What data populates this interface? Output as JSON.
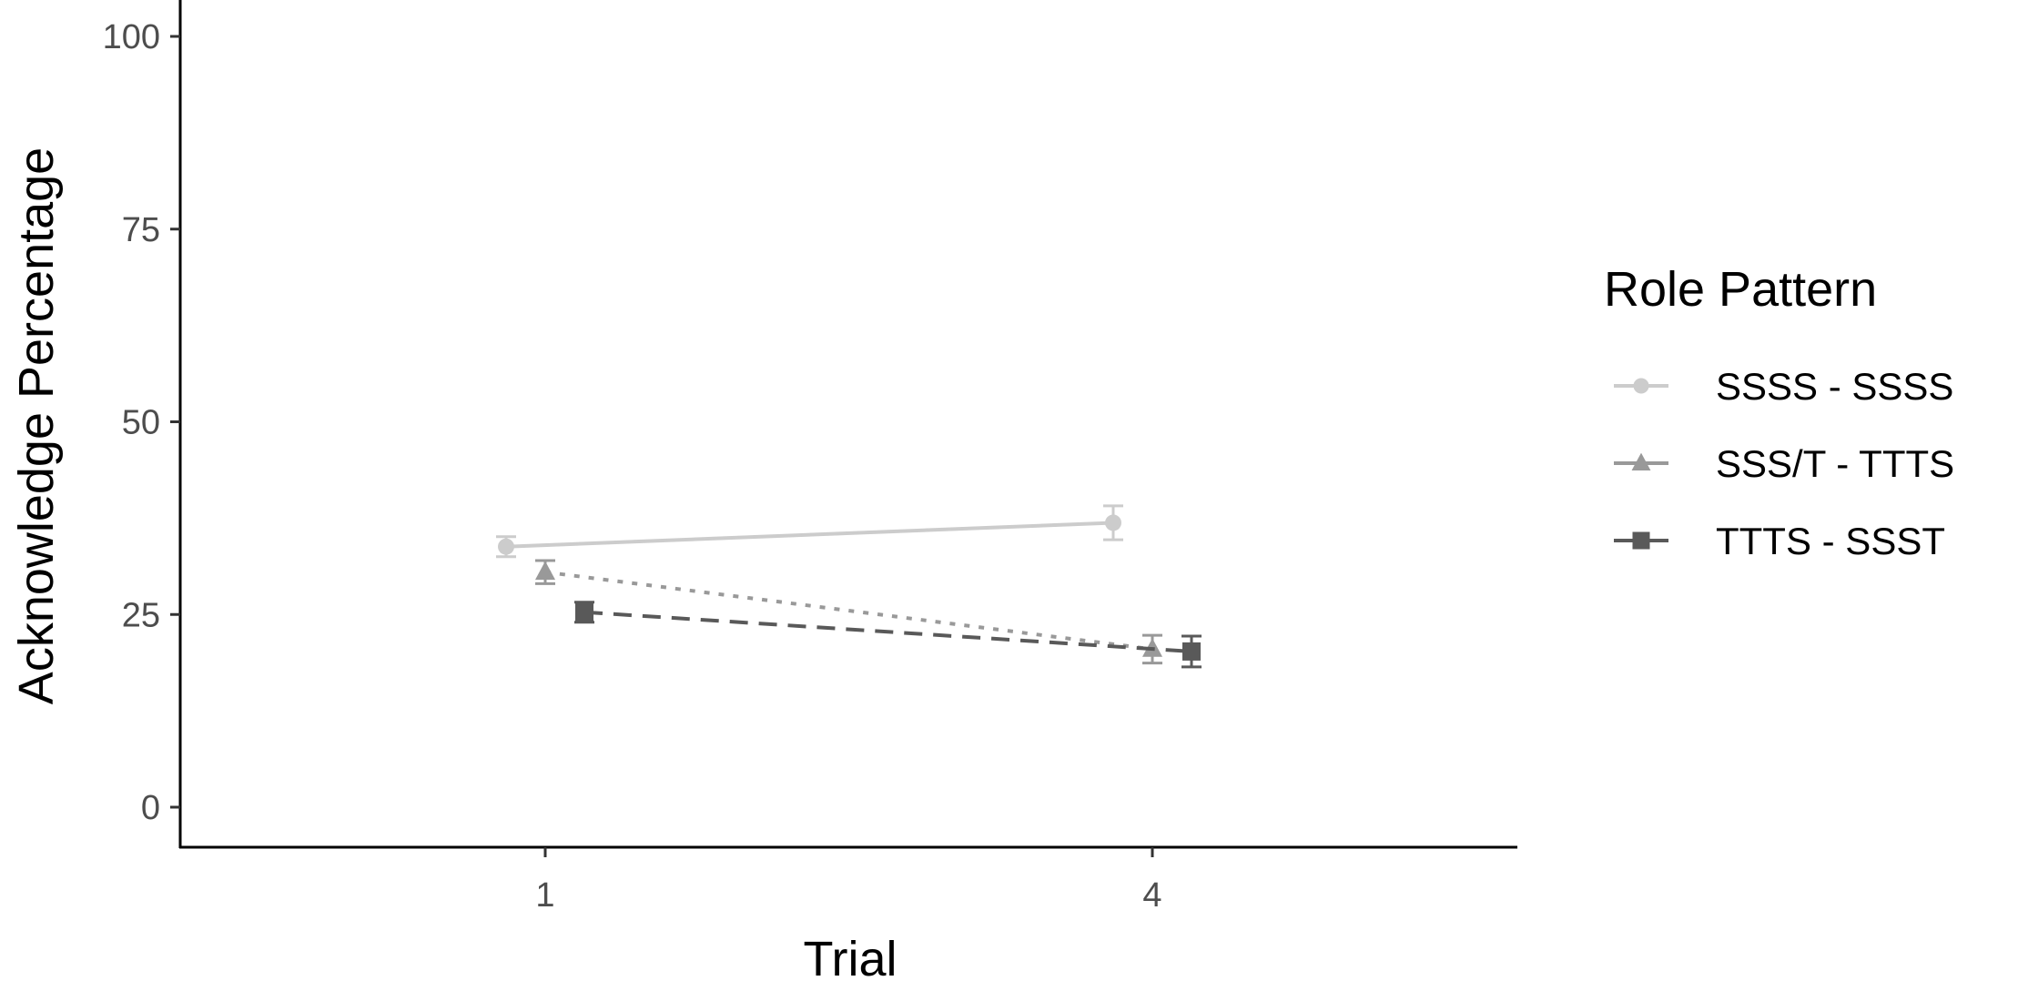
{
  "chart_data": {
    "type": "line",
    "xlabel": "Trial",
    "ylabel": "Acknowledge Percentage",
    "x_ticks": [
      "1",
      "4"
    ],
    "y_ticks": [
      "0",
      "25",
      "50",
      "75",
      "100"
    ],
    "ylim": [
      -5,
      105
    ],
    "grid": false,
    "legend_title": "Role Pattern",
    "legend_position": "right",
    "series": [
      {
        "name": "SSSS - SSSS",
        "marker": "circle",
        "line_style": "solid",
        "color": "#cccccc",
        "points": [
          {
            "x": "1",
            "y": 33.8,
            "err": 1.3
          },
          {
            "x": "4",
            "y": 36.9,
            "err": 2.2
          }
        ]
      },
      {
        "name": "SSS/T - TTTS",
        "marker": "triangle",
        "line_style": "dotted",
        "color": "#999999",
        "points": [
          {
            "x": "1",
            "y": 30.5,
            "err": 1.5
          },
          {
            "x": "4",
            "y": 20.5,
            "err": 1.8
          }
        ]
      },
      {
        "name": "TTTS - SSST",
        "marker": "square",
        "line_style": "dashed",
        "color": "#595959",
        "points": [
          {
            "x": "1",
            "y": 25.3,
            "err": 1.3
          },
          {
            "x": "4",
            "y": 20.2,
            "err": 2.0
          }
        ]
      }
    ]
  }
}
